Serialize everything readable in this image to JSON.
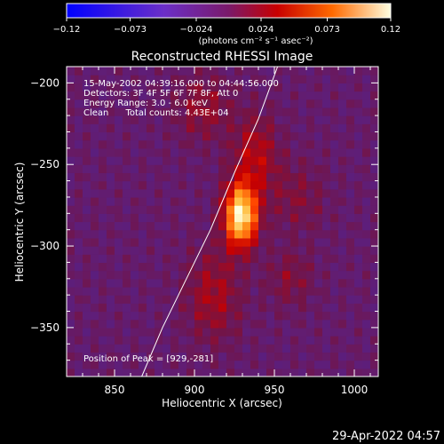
{
  "chart_data": {
    "type": "heatmap",
    "title": "Reconstructed RHESSI Image",
    "colorbar": {
      "ticks": [
        "-0.12",
        "-0.073",
        "-0.024",
        "0.024",
        "0.073",
        "0.12"
      ],
      "range": [
        -0.12,
        0.12
      ],
      "unit_label": "(photons cm⁻² s⁻¹ asec⁻²)"
    },
    "xlabel": "Heliocentric X (arcsec)",
    "ylabel": "Heliocentric Y (arcsec)",
    "xlim": [
      820,
      1015
    ],
    "ylim": [
      -380,
      -190
    ],
    "x_ticks": [
      850,
      900,
      950,
      1000
    ],
    "x_tick_labels": [
      "850",
      "900",
      "950",
      "1000"
    ],
    "y_ticks": [
      -200,
      -250,
      -300,
      -350
    ],
    "y_tick_labels": [
      "−200",
      "−250",
      "−300",
      "−350"
    ],
    "annotations": [
      "15-May-2002 04:39:16.000 to 04:44:56.000",
      "Detectors: 3F 4F 5F 6F 7F 8F, Att 0",
      "Energy Range: 3.0 - 6.0 keV",
      "Clean      Total counts: 4.43E+04"
    ],
    "peak_label": "Position of Peak = [929,-281]",
    "peak": [
      929,
      -281
    ],
    "limb_curve": [
      [
        867,
        -380
      ],
      [
        880,
        -350
      ],
      [
        895,
        -320
      ],
      [
        910,
        -290
      ],
      [
        925,
        -255
      ],
      [
        940,
        -222
      ],
      [
        952,
        -190
      ]
    ],
    "sources": [
      {
        "x": 929,
        "y": -281,
        "amp": 0.12,
        "sx": 7,
        "sy": 13
      },
      {
        "x": 938,
        "y": -245,
        "amp": 0.035,
        "sx": 10,
        "sy": 18
      },
      {
        "x": 912,
        "y": -330,
        "amp": 0.03,
        "sx": 12,
        "sy": 20
      },
      {
        "x": 905,
        "y": -215,
        "amp": 0.025,
        "sx": 12,
        "sy": 14
      },
      {
        "x": 960,
        "y": -320,
        "amp": 0.02,
        "sx": 10,
        "sy": 12
      },
      {
        "x": 965,
        "y": -270,
        "amp": 0.018,
        "sx": 12,
        "sy": 15
      }
    ]
  },
  "footer": {
    "date": "29-Apr-2022 04:57"
  }
}
